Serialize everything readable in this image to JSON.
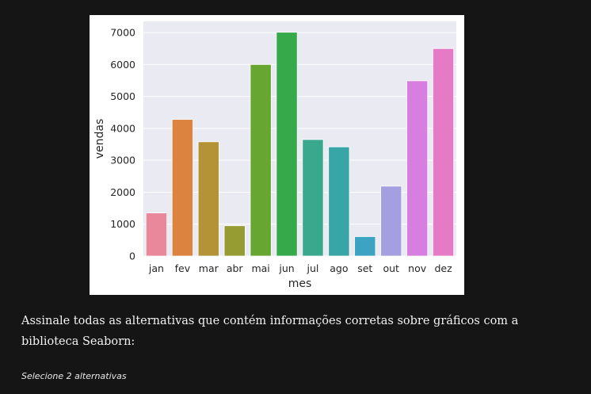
{
  "question": {
    "text": "Assinale todas as alternativas que contém informações corretas sobre gráficos com a biblioteca Seaborn:",
    "hint": "Selecione 2 alternativas"
  },
  "chart_data": {
    "type": "bar",
    "title": "",
    "xlabel": "mes",
    "ylabel": "vendas",
    "categories": [
      "jan",
      "fev",
      "mar",
      "abr",
      "mai",
      "jun",
      "jul",
      "ago",
      "set",
      "out",
      "nov",
      "dez"
    ],
    "values": [
      1350,
      4280,
      3580,
      950,
      6000,
      7010,
      3650,
      3420,
      610,
      2190,
      5490,
      6500
    ],
    "colors": [
      "#e8889a",
      "#db833f",
      "#b49337",
      "#969c32",
      "#66a631",
      "#36a94a",
      "#3aa88c",
      "#38a6a6",
      "#3ca3c2",
      "#a39fe0",
      "#d67fe0",
      "#e57bc5"
    ],
    "yticks": [
      0,
      1000,
      2000,
      3000,
      4000,
      5000,
      6000,
      7000
    ],
    "ylim": [
      0,
      7350
    ],
    "grid": true,
    "background": "#eaeaf2"
  }
}
